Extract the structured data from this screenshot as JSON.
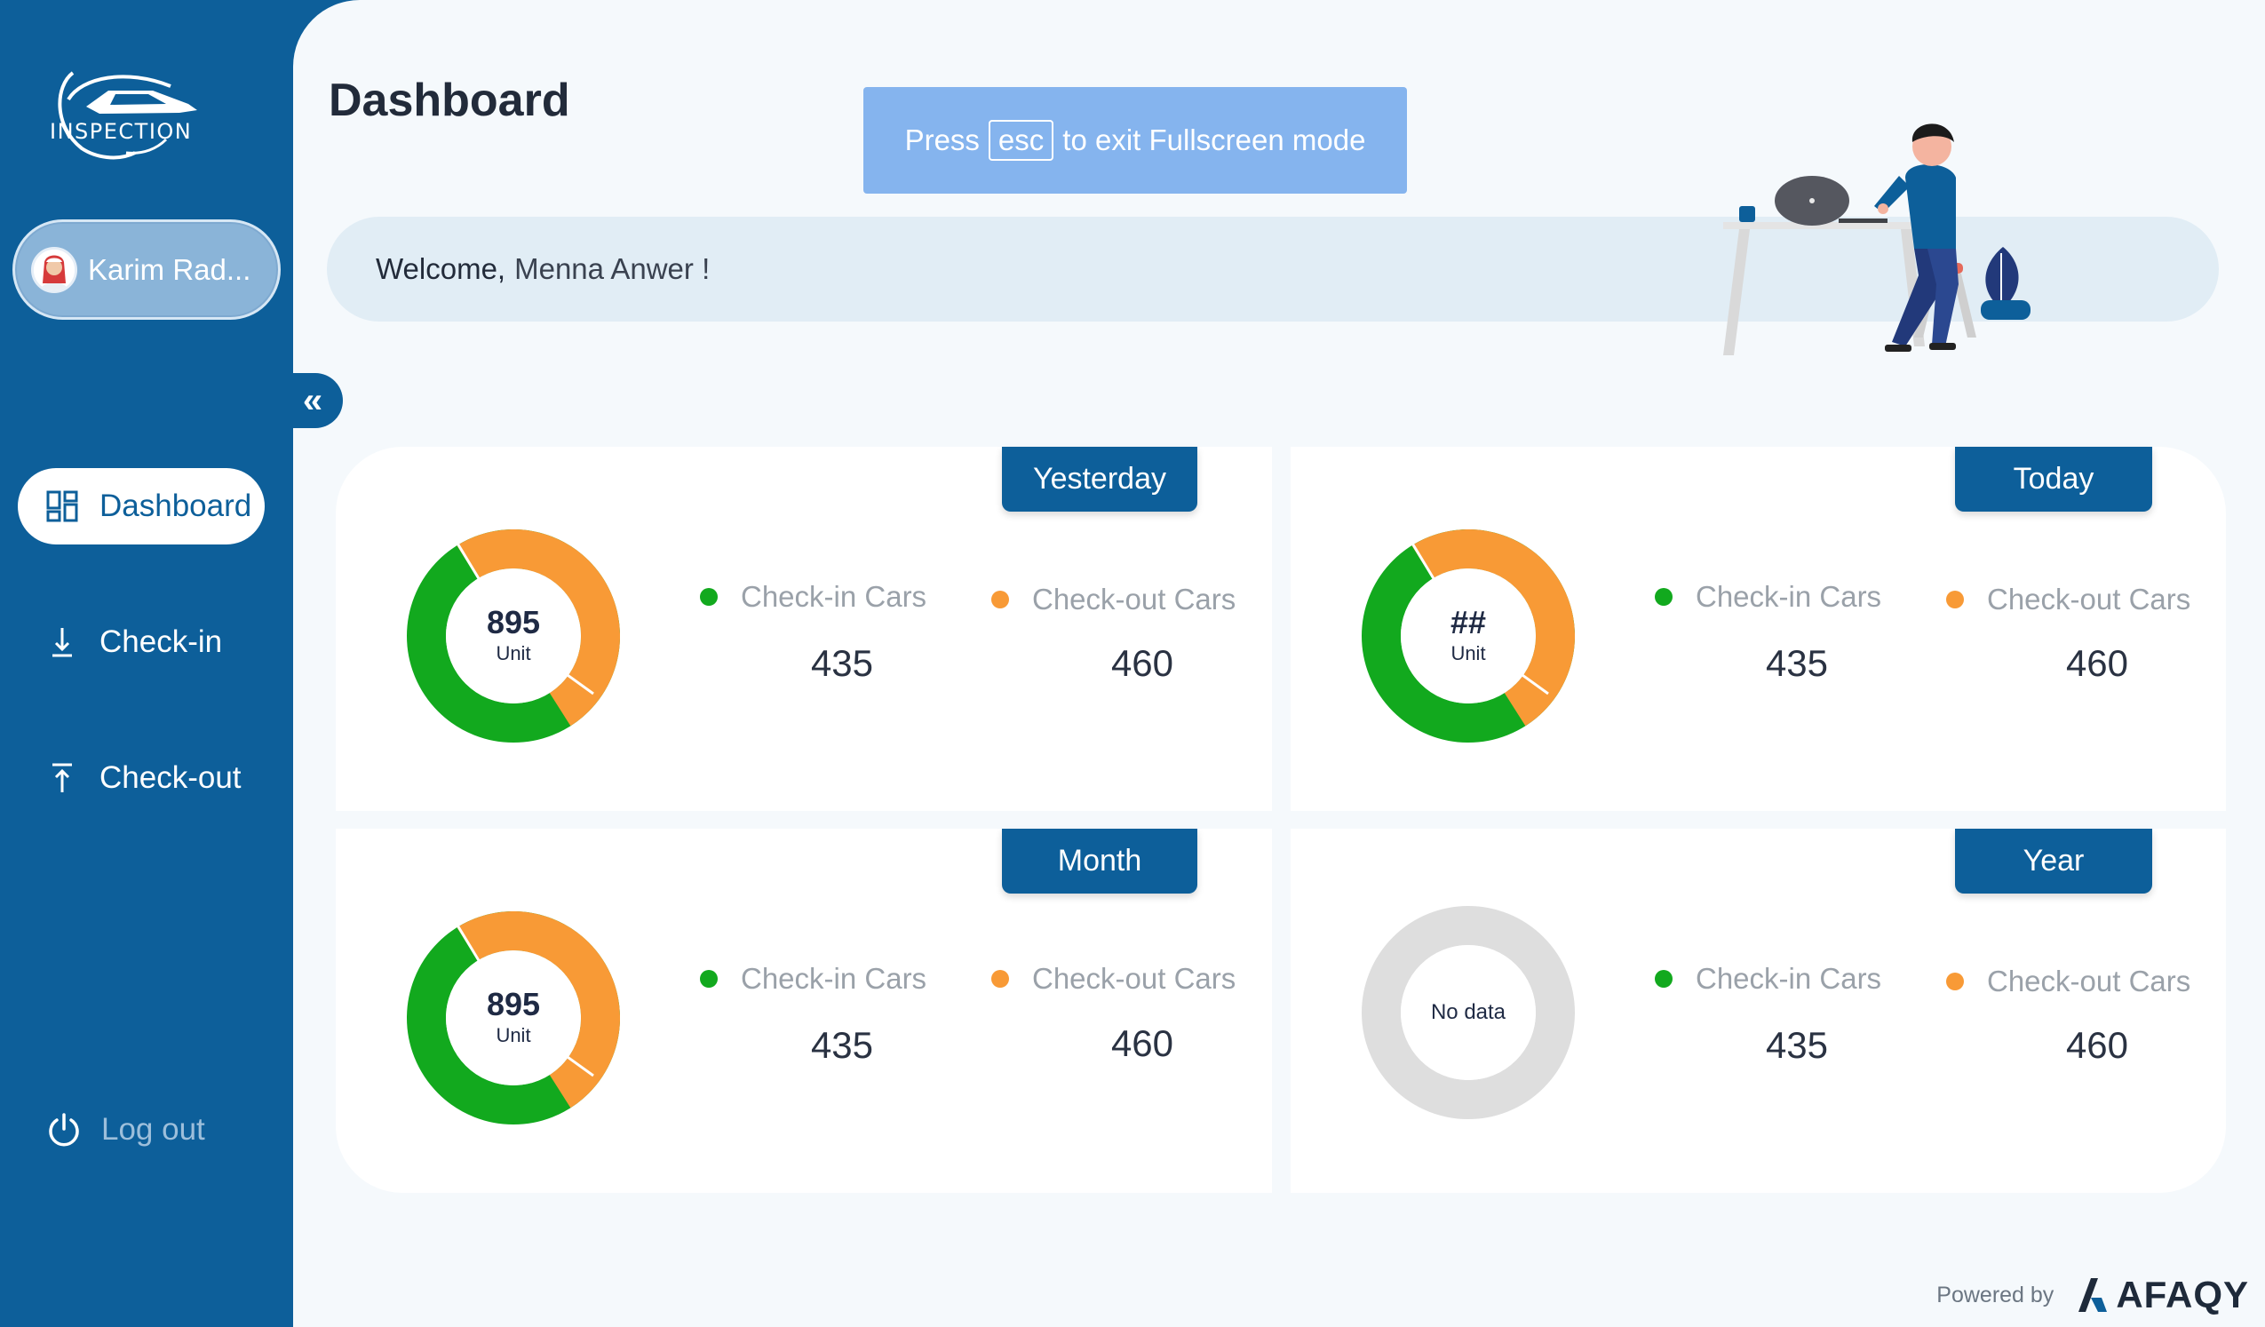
{
  "sidebar": {
    "logo_text": "INSPECTION",
    "user_name": "Karim Rad...",
    "collapse_icon": "double-chevron-left-icon",
    "nav": [
      {
        "label": "Dashboard",
        "icon": "dashboard-grid-icon",
        "active": true
      },
      {
        "label": "Check-in",
        "icon": "arrow-down-to-line-icon",
        "active": false
      },
      {
        "label": "Check-out",
        "icon": "arrow-up-from-line-icon",
        "active": false
      }
    ],
    "logout_label": "Log out"
  },
  "header": {
    "title": "Dashboard",
    "fullscreen": {
      "before": "Press",
      "key": "esc",
      "after": "to exit Fullscreen mode"
    },
    "welcome_label": "Welcome,",
    "welcome_name": "Menna Anwer !"
  },
  "cards": [
    {
      "tag": "Yesterday",
      "center_value": "895",
      "center_unit": "Unit",
      "checkin_label": "Check-in Cars",
      "checkin_value": "435",
      "checkout_label": "Check-out Cars",
      "checkout_value": "460",
      "has_data": true
    },
    {
      "tag": "Today",
      "center_value": "##",
      "center_unit": "Unit",
      "checkin_label": "Check-in Cars",
      "checkin_value": "435",
      "checkout_label": "Check-out Cars",
      "checkout_value": "460",
      "has_data": true
    },
    {
      "tag": "Month",
      "center_value": "895",
      "center_unit": "Unit",
      "checkin_label": "Check-in Cars",
      "checkin_value": "435",
      "checkout_label": "Check-out Cars",
      "checkout_value": "460",
      "has_data": true
    },
    {
      "tag": "Year",
      "no_data_label": "No data",
      "checkin_label": "Check-in Cars",
      "checkin_value": "435",
      "checkout_label": "Check-out Cars",
      "checkout_value": "460",
      "has_data": false
    }
  ],
  "colors": {
    "primary": "#0d5f9a",
    "checkin": "#12a91e",
    "checkout": "#f89a36",
    "empty": "#dedede"
  },
  "footer": {
    "powered_by": "Powered by",
    "brand": "AFAQY"
  }
}
